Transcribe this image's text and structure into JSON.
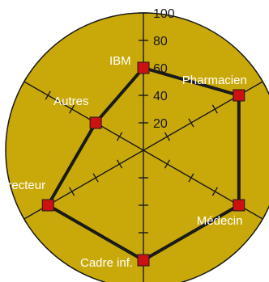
{
  "chart_data": {
    "type": "radar",
    "categories": [
      "IBM",
      "Pharmacien",
      "Médecin",
      "Cadre inf.",
      "Directeur",
      "Autres"
    ],
    "values": [
      60,
      80,
      80,
      80,
      80,
      40
    ],
    "rlim": [
      0,
      100
    ],
    "ticks": [
      "20",
      "40",
      "60",
      "80",
      "100"
    ],
    "grid": true,
    "legend": "none",
    "colors": {
      "background": "#c9a90a",
      "axis": "#1a1a1a",
      "series_line": "#1a1a1a",
      "marker": "#cc1111"
    }
  }
}
